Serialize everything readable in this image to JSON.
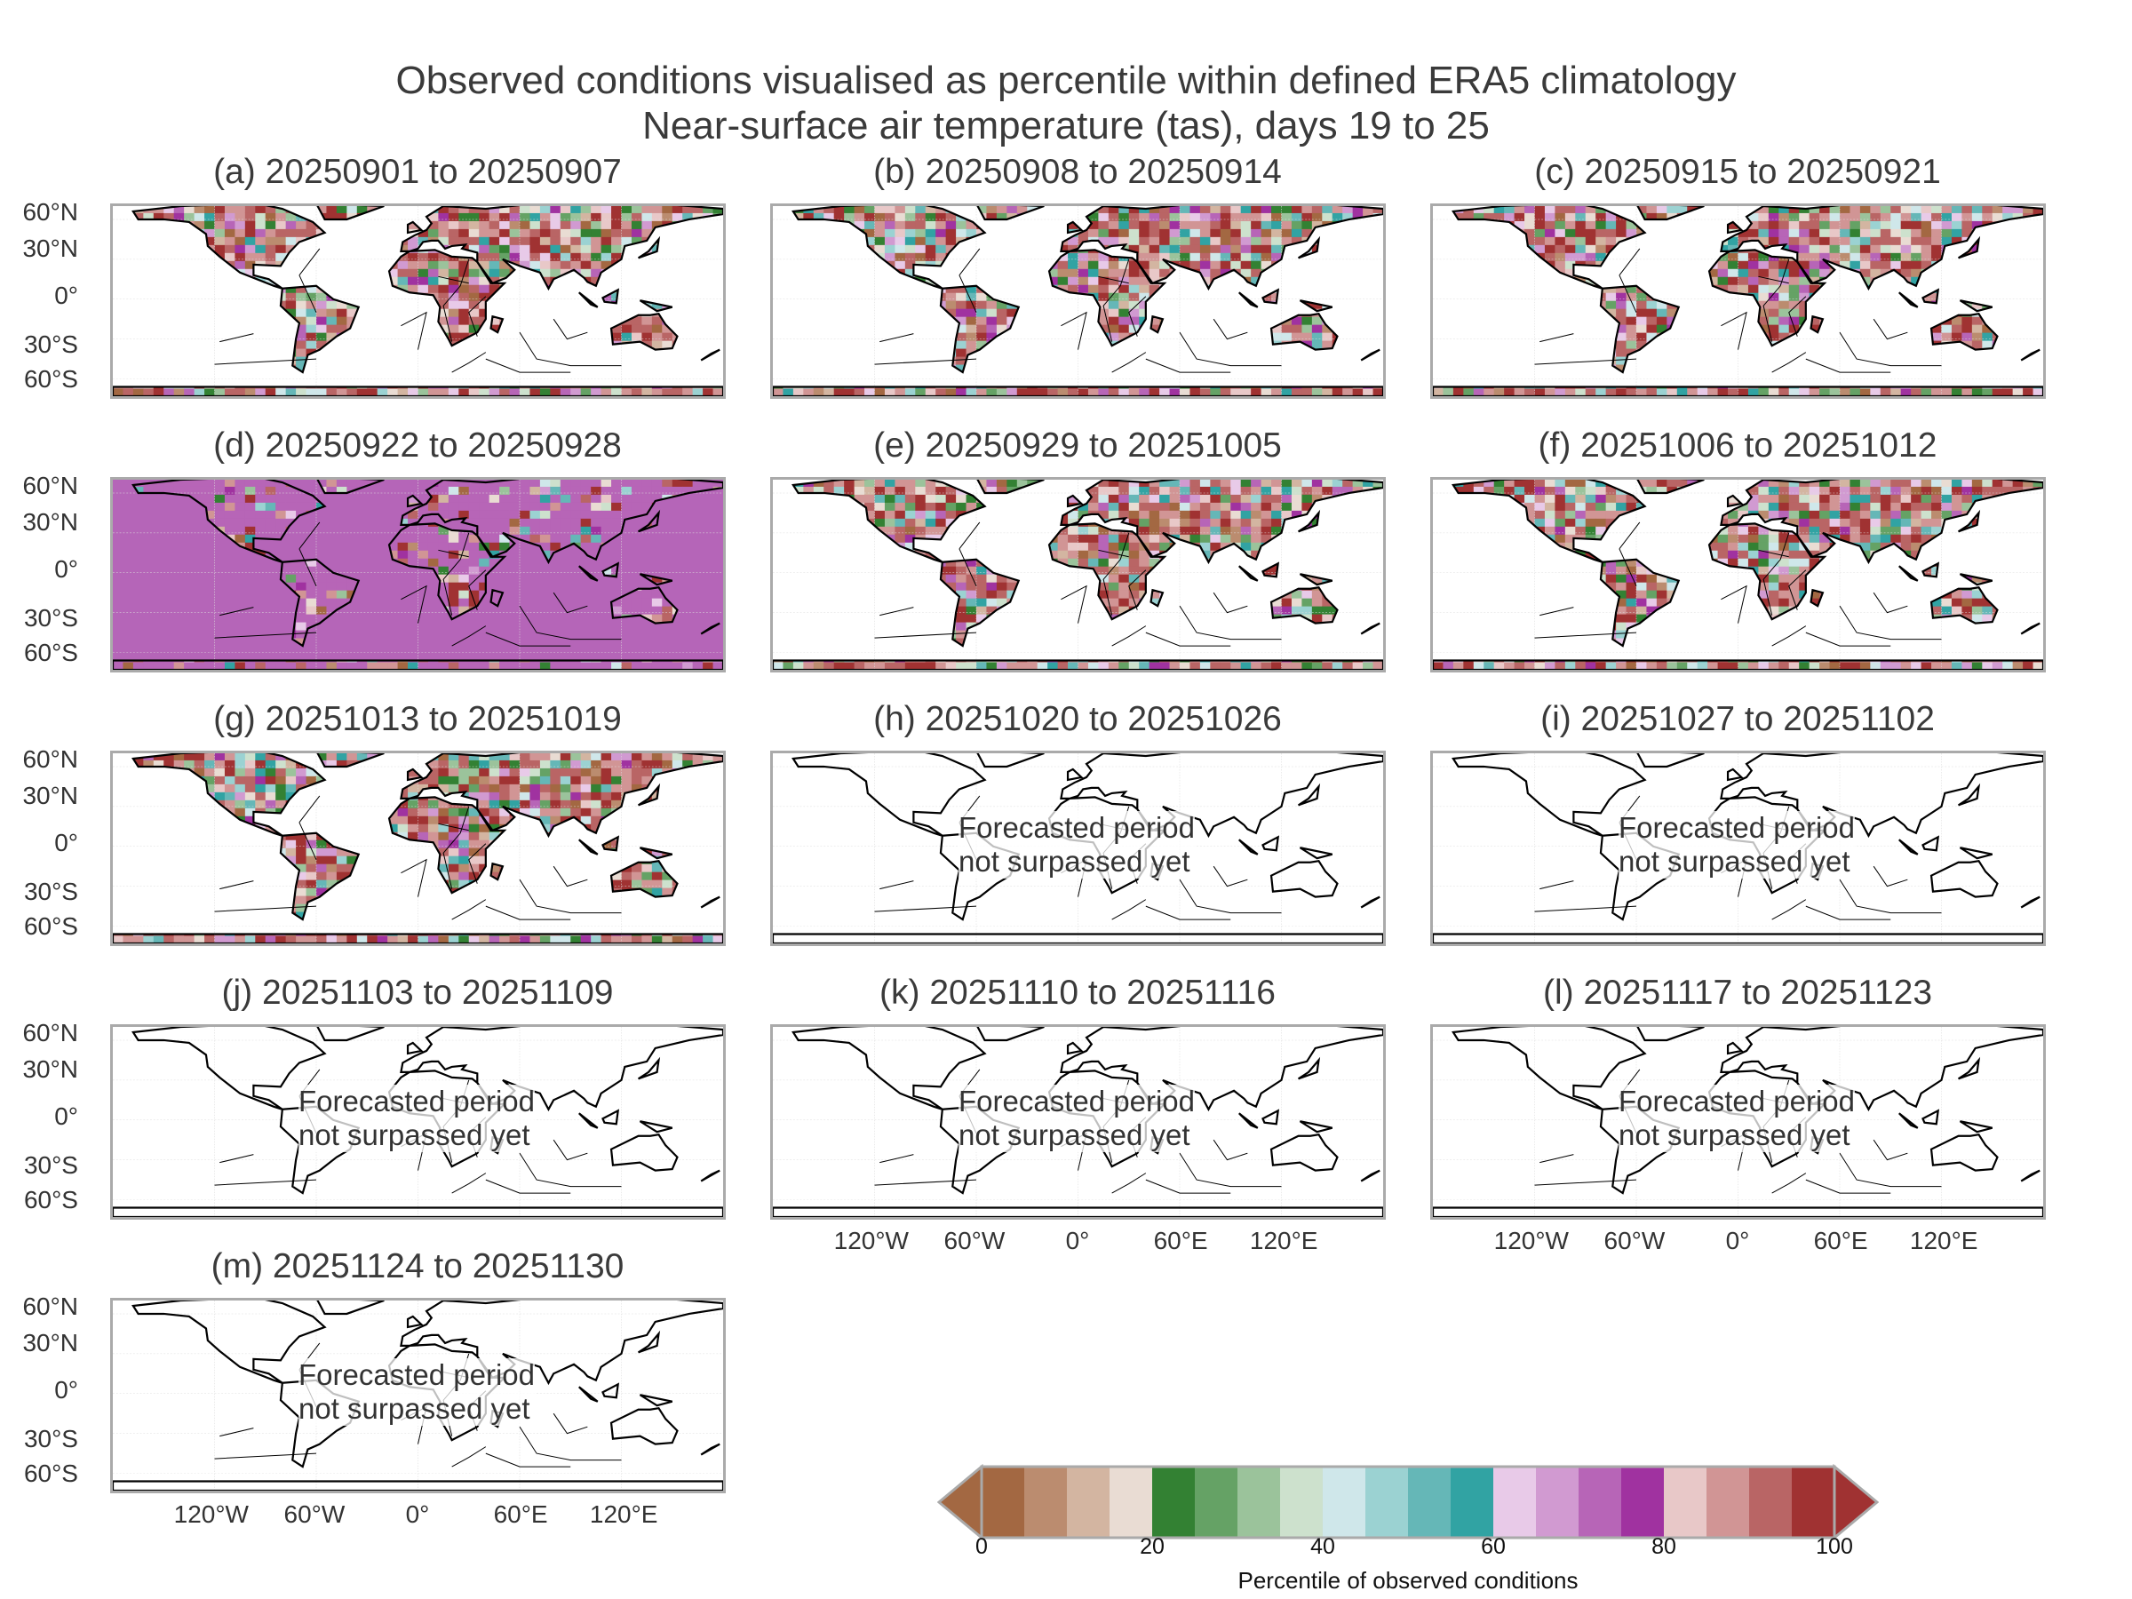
{
  "title_line1": "Observed conditions visualised as percentile within defined ERA5 climatology",
  "title_line2": "Near-surface air temperature (tas), days 19 to 25",
  "panels": [
    {
      "title": "(a) 20250901 to 20250907",
      "state": "observed"
    },
    {
      "title": "(b) 20250908 to 20250914",
      "state": "observed"
    },
    {
      "title": "(c) 20250915 to 20250921",
      "state": "observed"
    },
    {
      "title": "(d) 20250922 to 20250928",
      "state": "observed-ocean"
    },
    {
      "title": "(e) 20250929 to 20251005",
      "state": "observed"
    },
    {
      "title": "(f) 20251006 to 20251012",
      "state": "observed"
    },
    {
      "title": "(g) 20251013 to 20251019",
      "state": "observed"
    },
    {
      "title": "(h) 20251020 to 20251026",
      "state": "forecast"
    },
    {
      "title": "(i) 20251027 to 20251102",
      "state": "forecast"
    },
    {
      "title": "(j) 20251103 to 20251109",
      "state": "forecast"
    },
    {
      "title": "(k) 20251110 to 20251116",
      "state": "forecast"
    },
    {
      "title": "(l) 20251117 to 20251123",
      "state": "forecast"
    },
    {
      "title": "(m) 20251124 to 20251130",
      "state": "forecast"
    }
  ],
  "forecast_line1": "Forecasted period",
  "forecast_line2": "not surpassed yet",
  "lat_ticks": [
    "60°N",
    "30°N",
    "0°",
    "30°S",
    "60°S"
  ],
  "lon_ticks": [
    "120°W",
    "60°W",
    "0°",
    "60°E",
    "120°E"
  ],
  "colorbar": {
    "label": "Percentile of observed conditions",
    "ticks": [
      "0",
      "20",
      "40",
      "60",
      "80",
      "100"
    ],
    "range": [
      0,
      100
    ],
    "bin_width": 5,
    "colors": [
      "#a36842",
      "#bb8c6f",
      "#d3b5a1",
      "#e9dcd3",
      "#338133",
      "#65a265",
      "#9bc39b",
      "#cde1cd",
      "#cfe7ea",
      "#9bd2d2",
      "#65b7b7",
      "#31a3a3",
      "#e8cae8",
      "#d19ad1",
      "#b765b7",
      "#a032a0",
      "#e8c8c8",
      "#d19595",
      "#b96565",
      "#a03232"
    ],
    "extend": "both"
  }
}
